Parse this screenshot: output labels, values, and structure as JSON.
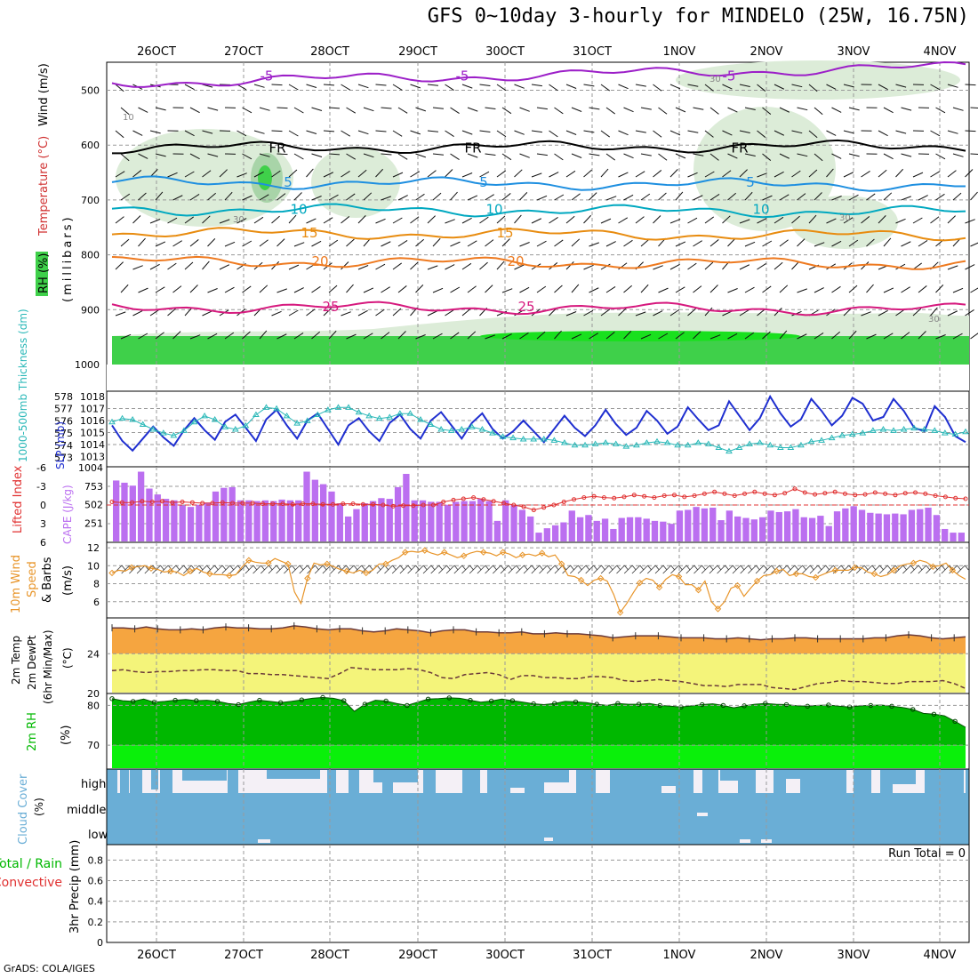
{
  "title": "GFS 0~10day 3-hourly for MINDELO (25W, 16.75N)",
  "credit": "GrADS: COLA/IGES",
  "colors": {
    "purple": "#9c1fc8",
    "black": "#000000",
    "blue": "#1e8fe0",
    "cyan": "#00a8c0",
    "orange": "#e88c10",
    "orange2": "#ee7a20",
    "magenta": "#d6197e",
    "rh_green": "#3fd04a",
    "rh_light": "#dcecd8",
    "slp_blue": "#1f2fd0",
    "thick_cyan": "#2ab8b8",
    "li_red": "#e03030",
    "cape_purple": "#bb6ff0",
    "wind_orange": "#e8952a",
    "temp_fill": "#f5a540",
    "dew_fill": "#f4f47a",
    "temp_line": "#6b3a3a",
    "rh2_dark": "#00b800",
    "rh2_light": "#0af00a",
    "cloud_blue": "#6aaed6",
    "cloud_white": "#f4f0f6"
  },
  "chart_data": [
    {
      "id": "upper_air",
      "type": "contour",
      "xlabels": [
        "26OCT",
        "27OCT",
        "28OCT",
        "29OCT",
        "30OCT",
        "31OCT",
        "1NOV",
        "2NOV",
        "3NOV",
        "4NOV"
      ],
      "ylabel_parts": [
        "RH (%)",
        "Temperature (°C)",
        "Wind (m/s)",
        "(millibars)"
      ],
      "ylim": [
        1000,
        460
      ],
      "yticks": [
        500,
        600,
        700,
        800,
        900,
        1000
      ],
      "contours": [
        {
          "label": "-5",
          "level_mb": 487,
          "color": "purple",
          "label_positions": [
            "-5",
            "-5"
          ]
        },
        {
          "label": "FR",
          "level_mb": 605,
          "color": "black"
        },
        {
          "label": "5",
          "level_mb": 668,
          "color": "blue"
        },
        {
          "label": "10",
          "level_mb": 717,
          "color": "cyan"
        },
        {
          "label": "15",
          "level_mb": 760,
          "color": "orange"
        },
        {
          "label": "20",
          "level_mb": 812,
          "color": "orange2"
        },
        {
          "label": "25",
          "level_mb": 895,
          "color": "magenta"
        }
      ],
      "rh_labels": [
        "30",
        "30",
        "30",
        "10",
        "30"
      ]
    },
    {
      "id": "slp_thickness",
      "type": "line",
      "ylabel_left": "1000-500mb Thickness (dm)",
      "ylabel_right": "SLP (mb)",
      "left_ticks": [
        "578",
        "577",
        "576",
        "575",
        "574",
        "573"
      ],
      "right_ticks": [
        "1018",
        "1017",
        "1016",
        "1015",
        "1014",
        "1013"
      ],
      "series": [
        {
          "name": "SLP (mb)",
          "color": "slp_blue",
          "values": [
            1015.6,
            1014.3,
            1013.5,
            1014.5,
            1015.5,
            1014.6,
            1013.9,
            1015.2,
            1016.2,
            1015.2,
            1014.4,
            1015.9,
            1016.5,
            1015.4,
            1014.3,
            1016.1,
            1016.9,
            1015.6,
            1014.5,
            1016.0,
            1016.6,
            1015.3,
            1014.0,
            1015.6,
            1016.2,
            1015.1,
            1014.3,
            1015.8,
            1016.5,
            1015.3,
            1014.5,
            1016.0,
            1016.7,
            1015.6,
            1014.5,
            1015.8,
            1016.6,
            1015.3,
            1014.5,
            1015.1,
            1016.0,
            1015.1,
            1014.2,
            1015.3,
            1016.4,
            1015.4,
            1014.7,
            1015.6,
            1016.9,
            1015.7,
            1014.8,
            1015.4,
            1016.8,
            1016.0,
            1014.9,
            1015.5,
            1017.1,
            1016.1,
            1015.2,
            1015.6,
            1017.6,
            1016.4,
            1015.2,
            1016.2,
            1018.0,
            1016.6,
            1015.5,
            1016.1,
            1017.8,
            1016.8,
            1015.6,
            1016.4,
            1017.9,
            1017.4,
            1016.0,
            1016.3,
            1017.8,
            1016.8,
            1015.4,
            1015.1,
            1017.2,
            1016.3,
            1014.7,
            1014.2
          ]
        },
        {
          "name": "1000-500mb Thickness (dm)",
          "color": "thick_cyan",
          "values": [
            575.9,
            576.2,
            576.1,
            575.7,
            575.3,
            575.0,
            574.8,
            575.2,
            575.9,
            576.4,
            576.1,
            575.5,
            575.3,
            575.6,
            576.5,
            577.1,
            577.0,
            576.4,
            575.8,
            576.0,
            576.5,
            576.9,
            577.1,
            577.1,
            576.7,
            576.4,
            576.2,
            576.3,
            576.6,
            576.6,
            576.1,
            575.7,
            575.3,
            575.2,
            575.3,
            575.5,
            575.3,
            575.0,
            574.7,
            574.6,
            574.5,
            574.5,
            574.5,
            574.4,
            574.2,
            574.0,
            574.0,
            574.1,
            574.2,
            574.1,
            573.9,
            574.0,
            574.2,
            574.3,
            574.2,
            574.0,
            574.0,
            574.2,
            574.1,
            573.8,
            573.5,
            573.8,
            574.1,
            574.2,
            574.0,
            573.8,
            573.8,
            574.0,
            574.3,
            574.4,
            574.6,
            574.8,
            574.9,
            575.0,
            575.2,
            575.3,
            575.2,
            575.3,
            575.4,
            575.3,
            575.2,
            575.0,
            574.9,
            575.1
          ]
        }
      ]
    },
    {
      "id": "cape_li",
      "type": "bar+line",
      "ylabel_left": "Lifted Index",
      "ylabel_right": "CAPE (J/kg)",
      "left_ticks": [
        "-6",
        "-3",
        "0",
        "3",
        "6"
      ],
      "right_ticks": [
        "1004",
        "753",
        "502",
        "251"
      ],
      "cape_values": [
        830,
        800,
        760,
        950,
        720,
        640,
        580,
        560,
        490,
        470,
        500,
        530,
        680,
        730,
        740,
        560,
        560,
        550,
        560,
        550,
        570,
        560,
        560,
        950,
        840,
        780,
        680,
        520,
        340,
        440,
        520,
        550,
        590,
        580,
        740,
        920,
        560,
        560,
        540,
        540,
        500,
        540,
        550,
        550,
        580,
        550,
        280,
        560,
        500,
        430,
        340,
        120,
        180,
        220,
        260,
        420,
        330,
        360,
        280,
        310,
        170,
        320,
        330,
        330,
        310,
        280,
        270,
        240,
        420,
        430,
        470,
        450,
        460,
        290,
        420,
        340,
        320,
        300,
        330,
        420,
        400,
        410,
        440,
        330,
        320,
        350,
        210,
        410,
        450,
        480,
        430,
        390,
        380,
        370,
        380,
        370,
        430,
        440,
        460,
        360,
        170,
        120,
        120
      ],
      "li_values": [
        -0.5,
        -0.4,
        -0.4,
        -0.6,
        -0.5,
        -0.6,
        -0.4,
        -0.5,
        -0.4,
        -0.3,
        -0.3,
        -0.4,
        -0.3,
        -0.3,
        -0.3,
        -0.2,
        -0.2,
        -0.2,
        -0.1,
        -0.2,
        -0.2,
        -0.1,
        -0.1,
        -0.2,
        -0.2,
        -0.1,
        -0.1,
        0,
        0.2,
        0.1,
        0.1,
        0,
        0,
        -0.5,
        -0.8,
        -1.0,
        -1.2,
        -0.9,
        -0.6,
        -0.3,
        0,
        0.3,
        0.8,
        0.4,
        0.0,
        -0.5,
        -0.9,
        -1.2,
        -1.4,
        -1.2,
        -1.1,
        -1.3,
        -1.6,
        -1.4,
        -1.2,
        -1.5,
        -1.6,
        -1.3,
        -1.5,
        -1.8,
        -2.1,
        -1.8,
        -1.5,
        -1.8,
        -2.1,
        -1.8,
        -1.6,
        -1.9,
        -2.6,
        -2.0,
        -1.7,
        -1.9,
        -2.1,
        -1.8,
        -1.6,
        -1.7,
        -2.0,
        -1.8,
        -1.6,
        -1.9,
        -2.0,
        -1.8,
        -1.5,
        -1.3,
        -1.1,
        -1.0
      ]
    },
    {
      "id": "wind10m",
      "type": "line",
      "ylabel_parts": [
        "10m Wind",
        "Speed",
        "& Barbs",
        "(m/s)"
      ],
      "yticks": [
        6,
        8,
        10,
        12
      ],
      "ylim": [
        4.2,
        12.6
      ],
      "values": [
        9.2,
        9.5,
        9.4,
        9.8,
        9.9,
        10.0,
        9.7,
        9.6,
        9.3,
        9.4,
        9.3,
        8.9,
        9.4,
        9.7,
        9.3,
        9.1,
        9.0,
        9.0,
        8.9,
        9.0,
        9.9,
        10.6,
        10.4,
        10.3,
        10.3,
        10.8,
        10.5,
        10.2,
        7.1,
        5.8,
        8.6,
        10.3,
        10.1,
        10.2,
        9.9,
        9.6,
        9.4,
        9.2,
        9.5,
        9.2,
        9.5,
        10.2,
        10.2,
        10.6,
        10.9,
        11.5,
        11.6,
        11.5,
        11.7,
        11.4,
        11.2,
        11.5,
        11.2,
        10.9,
        11.1,
        11.4,
        11.6,
        11.5,
        11.4,
        11.1,
        11.5,
        11.3,
        10.9,
        11.2,
        11.3,
        11.1,
        11.4,
        11.0,
        11.2,
        10.2,
        8.9,
        8.8,
        8.4,
        7.8,
        8.4,
        8.6,
        8.3,
        6.8,
        4.8,
        5.8,
        7.0,
        8.1,
        8.6,
        8.4,
        7.6,
        8.5,
        9.0,
        8.8,
        7.9,
        7.9,
        7.3,
        8.3,
        6.0,
        5.2,
        6.0,
        7.5,
        7.8,
        6.6,
        7.5,
        8.3,
        8.9,
        9.0,
        9.4,
        9.6,
        8.9,
        9.1,
        9.1,
        8.8,
        8.7,
        9.0,
        9.3,
        9.5,
        9.5,
        9.5,
        9.8,
        9.8,
        9.3,
        9.1,
        8.8,
        9.0,
        9.5,
        10.0,
        10.2,
        10.3,
        10.6,
        10.4,
        9.9,
        10.0,
        10.3,
        9.5,
        8.9,
        8.5
      ]
    },
    {
      "id": "temp2m",
      "type": "area",
      "ylabel_parts": [
        "2m Temp",
        "2m DewPt",
        "(6hr Min/Max)",
        "(°C)"
      ],
      "yticks": [
        20,
        24
      ],
      "ylim": [
        20,
        27.6
      ],
      "temp_values": [
        26.6,
        26.6,
        26.5,
        26.7,
        26.5,
        26.4,
        26.4,
        26.5,
        26.4,
        26.6,
        26.7,
        26.6,
        26.6,
        26.5,
        26.5,
        26.6,
        26.8,
        26.7,
        26.5,
        26.4,
        26.5,
        26.5,
        26.3,
        26.2,
        26.3,
        26.5,
        26.4,
        26.3,
        26.1,
        26.3,
        26.4,
        26.4,
        26.2,
        26.2,
        26.1,
        26.1,
        26.2,
        26.0,
        26.0,
        26.1,
        26.0,
        26.0,
        25.9,
        25.8,
        25.6,
        25.7,
        25.8,
        25.8,
        25.8,
        25.7,
        25.6,
        25.6,
        25.6,
        25.5,
        25.5,
        25.6,
        25.5,
        25.4,
        25.5,
        25.5,
        25.6,
        25.6,
        25.5,
        25.5,
        25.5,
        25.5,
        25.5,
        25.6,
        25.6,
        25.8,
        25.9,
        25.8,
        25.6,
        25.5,
        25.6,
        25.7
      ],
      "dew_values": [
        22.3,
        22.4,
        22.2,
        22.1,
        22.2,
        22.2,
        22.3,
        22.3,
        22.4,
        22.4,
        22.3,
        22.3,
        22.0,
        22.0,
        21.9,
        21.9,
        21.8,
        21.7,
        21.6,
        21.5,
        22.0,
        22.6,
        22.5,
        22.4,
        22.4,
        22.4,
        22.5,
        22.4,
        22.1,
        21.6,
        21.5,
        21.9,
        22.0,
        22.1,
        21.9,
        21.4,
        21.8,
        21.8,
        21.6,
        21.6,
        21.5,
        21.5,
        21.7,
        21.7,
        21.6,
        21.3,
        21.2,
        21.3,
        21.4,
        21.3,
        21.2,
        21.0,
        20.8,
        20.8,
        20.7,
        20.9,
        20.9,
        20.9,
        20.6,
        20.5,
        20.4,
        20.7,
        21.0,
        21.1,
        21.3,
        21.2,
        21.2,
        21.1,
        21.0,
        21.0,
        21.2,
        21.2,
        21.2,
        21.3,
        21.0,
        20.5
      ]
    },
    {
      "id": "rh2m",
      "type": "area",
      "ylabel_parts": [
        "2m RH",
        "(%)"
      ],
      "yticks": [
        70,
        80
      ],
      "ylim": [
        64,
        83
      ],
      "values": [
        81.7,
        81.2,
        81.0,
        81.6,
        80.8,
        81.0,
        81.3,
        81.5,
        81.2,
        81.3,
        81.0,
        80.5,
        80.2,
        80.8,
        81.3,
        81.0,
        80.7,
        81.0,
        81.4,
        81.8,
        82.0,
        81.8,
        81.2,
        78.5,
        80.3,
        81.3,
        81.1,
        80.5,
        80.0,
        80.8,
        81.6,
        81.7,
        81.9,
        81.8,
        81.3,
        80.8,
        81.1,
        81.6,
        81.2,
        80.8,
        80.4,
        80.2,
        80.5,
        81.0,
        80.9,
        80.7,
        80.3,
        80.0,
        80.5,
        80.3,
        80.3,
        80.5,
        80.0,
        79.8,
        79.6,
        79.9,
        80.2,
        80.4,
        80.0,
        79.4,
        79.9,
        80.3,
        80.5,
        80.3,
        80.2,
        79.9,
        79.8,
        80.0,
        80.1,
        79.8,
        79.6,
        79.9,
        80.0,
        80.1,
        79.8,
        79.5,
        79.0,
        78.0,
        77.8,
        77.4,
        76.0,
        74.5
      ]
    },
    {
      "id": "cloud_cover",
      "type": "heatmap",
      "ylabel_parts": [
        "Cloud Cover",
        "(%)"
      ],
      "rows": [
        "high",
        "middle",
        "low"
      ]
    },
    {
      "id": "precip",
      "type": "bar",
      "ylabel_parts": [
        "Total / Rain",
        "Convective",
        "3hr Precip (mm)"
      ],
      "yticks": [
        "0",
        "0.2",
        "0.4",
        "0.6",
        "0.8"
      ],
      "ylim": [
        0,
        0.95
      ],
      "run_total_label": "Run Total = 0",
      "xlabels": [
        "26OCT",
        "27OCT",
        "28OCT",
        "29OCT",
        "30OCT",
        "31OCT",
        "1NOV",
        "2NOV",
        "3NOV",
        "4NOV"
      ]
    }
  ]
}
